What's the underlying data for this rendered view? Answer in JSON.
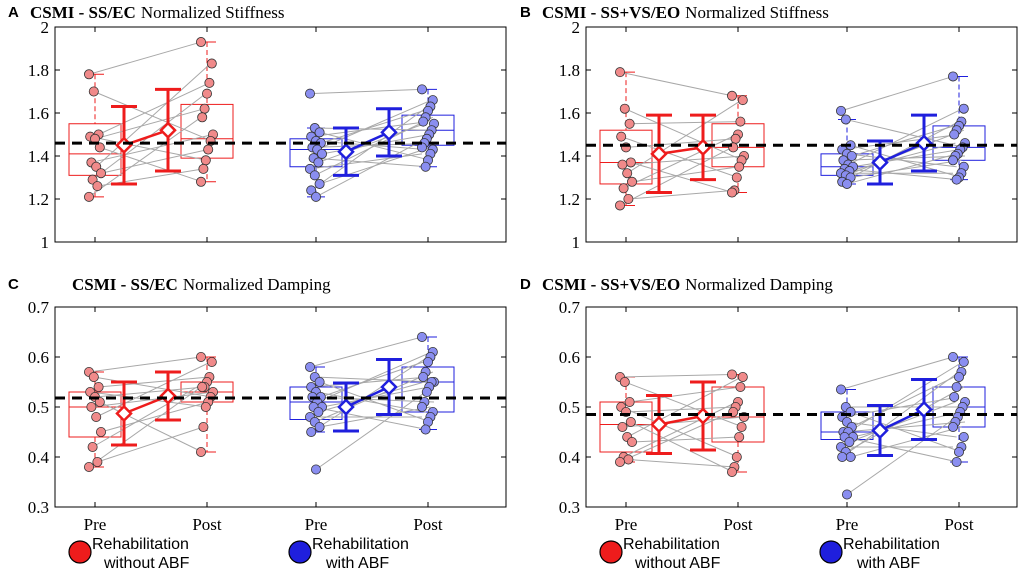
{
  "colors": {
    "red": "#ee1c1c",
    "blue": "#1f1fdd",
    "red_fill": "#f08a8a",
    "blue_fill": "#8a8ef0",
    "line_gray": "#a8a8a8"
  },
  "x_tick_labels": [
    "Pre",
    "Post",
    "Pre",
    "Post"
  ],
  "legend": [
    {
      "line1": "Rehabilitation",
      "line2": "without ABF",
      "color": "red"
    },
    {
      "line1": "Rehabilitation",
      "line2": "with ABF",
      "color": "blue"
    }
  ],
  "chart_data": [
    {
      "type": "boxplot",
      "panel": "A",
      "title_bold": "CSMI - SS/EC",
      "title_rest": "Normalized Stiffness",
      "ylim": [
        1,
        2
      ],
      "yticks": [
        1,
        1.2,
        1.4,
        1.6,
        1.8,
        2
      ],
      "yticklabels": [
        "1",
        "1.2",
        "1.4",
        "1.6",
        "1.8",
        "2"
      ],
      "reference_line": 1.46,
      "groups": [
        {
          "name": "Rehabilitation without ABF",
          "color": "red",
          "pre": {
            "min": 1.21,
            "q1": 1.31,
            "median": 1.41,
            "q3": 1.55,
            "max": 1.78,
            "mean": 1.45,
            "sd": 0.18
          },
          "post": {
            "min": 1.28,
            "q1": 1.39,
            "median": 1.48,
            "q3": 1.64,
            "max": 1.93,
            "mean": 1.52,
            "sd": 0.19
          },
          "pre_points": [
            1.78,
            1.7,
            1.5,
            1.49,
            1.48,
            1.44,
            1.37,
            1.35,
            1.32,
            1.29,
            1.26,
            1.21
          ],
          "post_points": [
            1.93,
            1.83,
            1.74,
            1.69,
            1.62,
            1.58,
            1.5,
            1.47,
            1.43,
            1.38,
            1.34,
            1.28
          ]
        },
        {
          "name": "Rehabilitation with ABF",
          "color": "blue",
          "pre": {
            "min": 1.21,
            "q1": 1.35,
            "median": 1.43,
            "q3": 1.48,
            "max": 1.53,
            "mean": 1.42,
            "sd": 0.11
          },
          "post": {
            "min": 1.35,
            "q1": 1.45,
            "median": 1.52,
            "q3": 1.59,
            "max": 1.71,
            "mean": 1.51,
            "sd": 0.11
          },
          "pre_points": [
            1.69,
            1.53,
            1.51,
            1.49,
            1.47,
            1.46,
            1.44,
            1.43,
            1.41,
            1.39,
            1.37,
            1.34,
            1.31,
            1.27,
            1.24,
            1.21
          ],
          "post_points": [
            1.71,
            1.66,
            1.63,
            1.61,
            1.58,
            1.56,
            1.55,
            1.52,
            1.5,
            1.48,
            1.46,
            1.44,
            1.43,
            1.41,
            1.38,
            1.35
          ]
        }
      ]
    },
    {
      "type": "boxplot",
      "panel": "B",
      "title_bold": "CSMI - SS+VS/EO",
      "title_rest": "Normalized Stiffness",
      "ylim": [
        1,
        2
      ],
      "yticks": [
        1,
        1.2,
        1.4,
        1.6,
        1.8,
        2
      ],
      "yticklabels": [
        "1",
        "1.2",
        "1.4",
        "1.6",
        "1.8",
        "2"
      ],
      "reference_line": 1.45,
      "groups": [
        {
          "name": "Rehabilitation without ABF",
          "color": "red",
          "pre": {
            "min": 1.17,
            "q1": 1.27,
            "median": 1.37,
            "q3": 1.52,
            "max": 1.79,
            "mean": 1.41,
            "sd": 0.18
          },
          "post": {
            "min": 1.23,
            "q1": 1.35,
            "median": 1.44,
            "q3": 1.55,
            "max": 1.68,
            "mean": 1.44,
            "sd": 0.15
          },
          "pre_points": [
            1.79,
            1.62,
            1.55,
            1.49,
            1.44,
            1.37,
            1.36,
            1.32,
            1.28,
            1.25,
            1.2,
            1.17
          ],
          "post_points": [
            1.68,
            1.66,
            1.56,
            1.5,
            1.48,
            1.44,
            1.4,
            1.38,
            1.35,
            1.3,
            1.24,
            1.23
          ]
        },
        {
          "name": "Rehabilitation with ABF",
          "color": "blue",
          "pre": {
            "min": 1.27,
            "q1": 1.31,
            "median": 1.35,
            "q3": 1.41,
            "max": 1.57,
            "mean": 1.37,
            "sd": 0.1
          },
          "post": {
            "min": 1.29,
            "q1": 1.38,
            "median": 1.44,
            "q3": 1.54,
            "max": 1.77,
            "mean": 1.46,
            "sd": 0.13
          },
          "pre_points": [
            1.61,
            1.57,
            1.45,
            1.43,
            1.41,
            1.4,
            1.38,
            1.36,
            1.35,
            1.34,
            1.33,
            1.32,
            1.31,
            1.3,
            1.28,
            1.27
          ],
          "post_points": [
            1.77,
            1.62,
            1.56,
            1.54,
            1.52,
            1.5,
            1.46,
            1.44,
            1.43,
            1.41,
            1.4,
            1.38,
            1.35,
            1.32,
            1.3,
            1.29
          ]
        }
      ]
    },
    {
      "type": "boxplot",
      "panel": "C",
      "title_bold": "CSMI - SS/EC",
      "title_rest": "Normalized Damping",
      "ylim": [
        0.3,
        0.7
      ],
      "yticks": [
        0.3,
        0.4,
        0.5,
        0.6,
        0.7
      ],
      "yticklabels": [
        "0.3",
        "0.4",
        "0.5",
        "0.6",
        "0.7"
      ],
      "reference_line": 0.518,
      "groups": [
        {
          "name": "Rehabilitation without ABF",
          "color": "red",
          "pre": {
            "min": 0.38,
            "q1": 0.44,
            "median": 0.5,
            "q3": 0.53,
            "max": 0.57,
            "mean": 0.487,
            "sd": 0.063
          },
          "post": {
            "min": 0.41,
            "q1": 0.51,
            "median": 0.53,
            "q3": 0.55,
            "max": 0.6,
            "mean": 0.522,
            "sd": 0.048
          },
          "pre_points": [
            0.57,
            0.56,
            0.54,
            0.53,
            0.52,
            0.51,
            0.5,
            0.48,
            0.45,
            0.42,
            0.39,
            0.38
          ],
          "post_points": [
            0.6,
            0.59,
            0.56,
            0.55,
            0.54,
            0.54,
            0.53,
            0.52,
            0.51,
            0.5,
            0.46,
            0.41
          ]
        },
        {
          "name": "Rehabilitation with ABF",
          "color": "blue",
          "pre": {
            "min": 0.45,
            "q1": 0.475,
            "median": 0.51,
            "q3": 0.54,
            "max": 0.58,
            "mean": 0.5,
            "sd": 0.048
          },
          "post": {
            "min": 0.455,
            "q1": 0.49,
            "median": 0.55,
            "q3": 0.58,
            "max": 0.64,
            "mean": 0.54,
            "sd": 0.055
          },
          "pre_points": [
            0.58,
            0.56,
            0.55,
            0.54,
            0.53,
            0.52,
            0.52,
            0.51,
            0.5,
            0.5,
            0.49,
            0.48,
            0.47,
            0.46,
            0.45,
            0.375
          ],
          "post_points": [
            0.64,
            0.61,
            0.6,
            0.59,
            0.57,
            0.56,
            0.55,
            0.55,
            0.54,
            0.53,
            0.51,
            0.5,
            0.49,
            0.48,
            0.47,
            0.455
          ]
        }
      ]
    },
    {
      "type": "boxplot",
      "panel": "D",
      "title_bold": "CSMI - SS+VS/EO",
      "title_rest": "Normalized Damping",
      "ylim": [
        0.3,
        0.7
      ],
      "yticks": [
        0.3,
        0.4,
        0.5,
        0.6,
        0.7
      ],
      "yticklabels": [
        "0.3",
        "0.4",
        "0.5",
        "0.6",
        "0.7"
      ],
      "reference_line": 0.485,
      "groups": [
        {
          "name": "Rehabilitation without ABF",
          "color": "red",
          "pre": {
            "min": 0.39,
            "q1": 0.41,
            "median": 0.465,
            "q3": 0.51,
            "max": 0.56,
            "mean": 0.465,
            "sd": 0.058
          },
          "post": {
            "min": 0.37,
            "q1": 0.43,
            "median": 0.48,
            "q3": 0.54,
            "max": 0.565,
            "mean": 0.482,
            "sd": 0.068
          },
          "pre_points": [
            0.56,
            0.55,
            0.51,
            0.5,
            0.49,
            0.47,
            0.46,
            0.44,
            0.43,
            0.4,
            0.395,
            0.39
          ],
          "post_points": [
            0.565,
            0.56,
            0.54,
            0.51,
            0.5,
            0.49,
            0.48,
            0.46,
            0.44,
            0.4,
            0.38,
            0.37
          ]
        },
        {
          "name": "Rehabilitation with ABF",
          "color": "blue",
          "pre": {
            "min": 0.4,
            "q1": 0.435,
            "median": 0.45,
            "q3": 0.49,
            "max": 0.535,
            "mean": 0.453,
            "sd": 0.05
          },
          "post": {
            "min": 0.39,
            "q1": 0.46,
            "median": 0.5,
            "q3": 0.54,
            "max": 0.6,
            "mean": 0.495,
            "sd": 0.06
          },
          "pre_points": [
            0.535,
            0.5,
            0.49,
            0.48,
            0.47,
            0.46,
            0.45,
            0.45,
            0.44,
            0.44,
            0.43,
            0.42,
            0.41,
            0.4,
            0.4,
            0.325
          ],
          "post_points": [
            0.6,
            0.59,
            0.57,
            0.56,
            0.54,
            0.52,
            0.51,
            0.5,
            0.49,
            0.48,
            0.47,
            0.46,
            0.44,
            0.42,
            0.41,
            0.39
          ]
        }
      ]
    }
  ]
}
